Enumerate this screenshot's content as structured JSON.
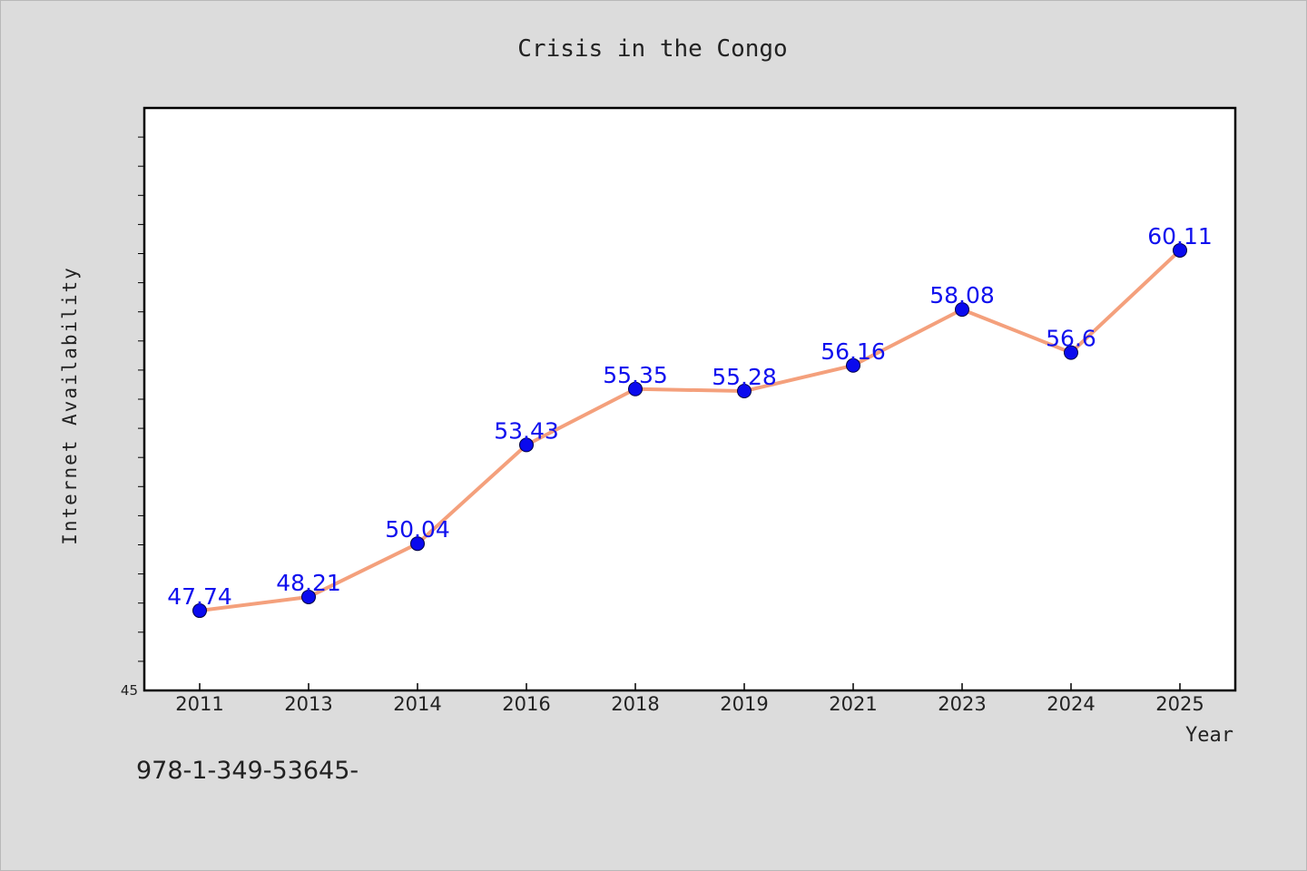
{
  "chart_data": {
    "type": "line",
    "title": "Crisis in the Congo",
    "xlabel": "Year",
    "ylabel": "Internet Availability",
    "categories": [
      "2011",
      "2013",
      "2014",
      "2016",
      "2018",
      "2019",
      "2021",
      "2023",
      "2024",
      "2025"
    ],
    "values": [
      47.74,
      48.21,
      50.04,
      53.43,
      55.35,
      55.28,
      56.16,
      58.08,
      56.6,
      60.11
    ],
    "data_labels": [
      "47.74",
      "48.21",
      "50.04",
      "53.43",
      "55.35",
      "55.28",
      "56.16",
      "58.08",
      "56.6",
      "60.11"
    ],
    "ylim": [
      45,
      65
    ],
    "y_tick_labels": [
      "45"
    ],
    "y_minor_tick_step": 1,
    "grid": false,
    "legend": "none",
    "line_color": "#f4a07c",
    "marker_color": "#0a0aee",
    "label_color": "#1010ee"
  },
  "footnote": "978-1-349-53645-"
}
